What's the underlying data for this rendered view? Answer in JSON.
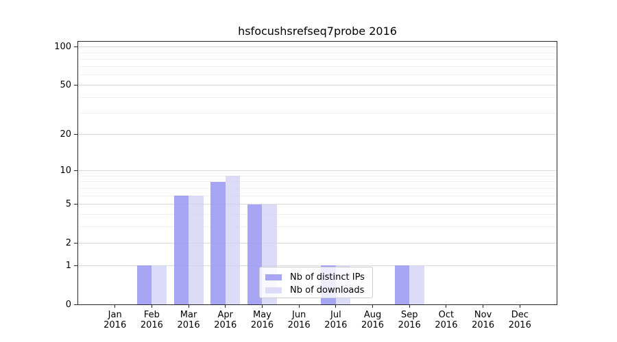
{
  "chart_data": {
    "type": "bar",
    "title": "hsfocushsrefseq7probe 2016",
    "categories": [
      "Jan",
      "Feb",
      "Mar",
      "Apr",
      "May",
      "Jun",
      "Jul",
      "Aug",
      "Sep",
      "Oct",
      "Nov",
      "Dec"
    ],
    "x_sublabel_year": "2016",
    "series": [
      {
        "name": "Nb of distinct IPs",
        "color": "rgba(150,150,242,0.85)",
        "swatch_color": "#a6a6f4",
        "values": [
          0,
          1,
          6,
          8,
          5,
          0,
          1,
          0,
          1,
          0,
          0,
          0
        ]
      },
      {
        "name": "Nb of downloads",
        "color": "rgba(205,205,245,0.7)",
        "swatch_color": "#dcdcf8",
        "values": [
          0,
          1,
          6,
          9,
          5,
          0,
          1,
          0,
          1,
          0,
          0,
          0
        ]
      }
    ],
    "y_ticks": [
      0,
      1,
      2,
      5,
      10,
      20,
      50,
      100
    ],
    "y_minor_ticks": [
      3,
      4,
      6,
      7,
      8,
      9,
      30,
      40,
      60,
      70,
      80,
      90
    ],
    "scale": "log1p",
    "ylim": [
      0,
      110
    ],
    "xlabel": "",
    "ylabel": "",
    "grid": "on",
    "legend_position": "lower-center",
    "colors": {
      "major_grid": "#d9d9d9",
      "minor_grid": "#f0f0f0",
      "spine": "#262626",
      "text": "#000000",
      "legend_border": "#cccccc"
    }
  }
}
